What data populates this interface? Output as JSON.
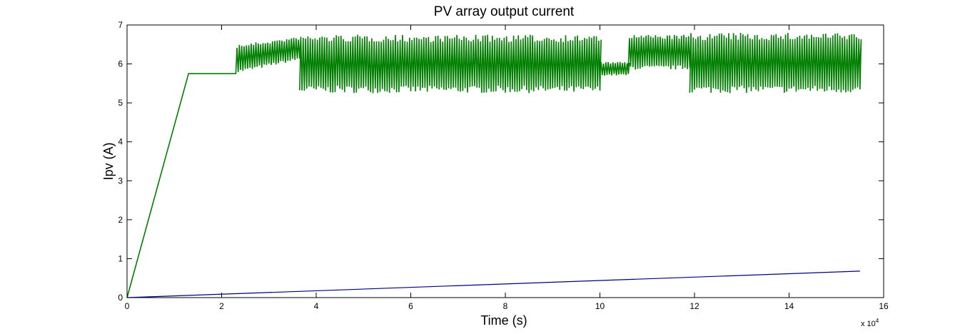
{
  "chart_data": {
    "type": "line",
    "title": "PV array output current",
    "xlabel": "Time (s)",
    "ylabel": "Ipv (A)",
    "x_multiplier_base": "x 10",
    "x_multiplier_exponent": "4",
    "x_tick_labels": [
      "0",
      "2",
      "4",
      "6",
      "8",
      "10",
      "12",
      "14",
      "16"
    ],
    "y_tick_labels": [
      "0",
      "1",
      "2",
      "3",
      "4",
      "5",
      "6",
      "7"
    ],
    "xlim": [
      0,
      160000
    ],
    "ylim": [
      0,
      7
    ],
    "grid": false,
    "series": [
      {
        "color": "#007f00",
        "style": "ramp to plateau then oscillating around 6 A",
        "x": [
          0,
          13000,
          23000,
          24000,
          36500,
          37000,
          155000
        ],
        "y": [
          0,
          5.75,
          5.75,
          6.1,
          6.1,
          6.0,
          6.0
        ],
        "oscillation_segments": [
          {
            "x_start": 23000,
            "x_end": 36500,
            "low_start": 5.75,
            "low_end": 6.1,
            "high_start": 6.5,
            "high_end": 6.7
          },
          {
            "x_start": 36500,
            "x_end": 100000,
            "low": 5.25,
            "high": 6.75
          },
          {
            "x_start": 100000,
            "x_end": 106000,
            "low": 5.7,
            "high": 6.05
          },
          {
            "x_start": 106000,
            "x_end": 119000,
            "low": 5.85,
            "high": 6.75
          },
          {
            "x_start": 119000,
            "x_end": 155000,
            "low": 5.25,
            "high": 6.8
          }
        ]
      },
      {
        "color": "#00007f",
        "style": "linear ramp",
        "x": [
          0,
          155000
        ],
        "y": [
          0,
          0.68
        ]
      }
    ]
  }
}
